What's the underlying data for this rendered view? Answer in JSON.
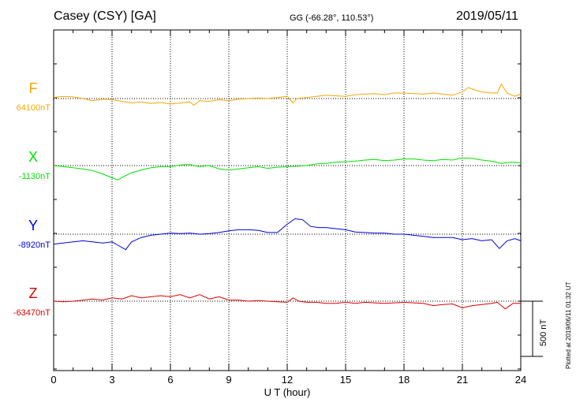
{
  "header": {
    "station": "Casey (CSY)  [GA]",
    "coords": "GG (-66.28°, 110.53°)",
    "date": "2019/05/11"
  },
  "side": {
    "scale_label": "500 nT",
    "plotted": "Plotted at 2019/06/11 01:32 UT"
  },
  "chart_data": {
    "type": "line",
    "xlabel": "U T (hour)",
    "xlim": [
      0,
      24
    ],
    "xticks": [
      "0",
      "3",
      "6",
      "9",
      "12",
      "15",
      "18",
      "21",
      "24"
    ],
    "scale_bar_nT": 500,
    "series": [
      {
        "name": "F",
        "baseline_label": "64100nT",
        "color": "#f4a800",
        "baseline_value": 64100,
        "x": [
          0,
          0.5,
          1,
          1.5,
          2,
          2.5,
          3,
          3.5,
          4,
          4.5,
          5,
          5.5,
          6,
          6.5,
          7,
          7.2,
          7.5,
          8,
          8.5,
          9,
          9.5,
          10,
          10.5,
          11,
          11.5,
          12,
          12.3,
          12.5,
          13,
          13.5,
          14,
          14.5,
          15,
          15.5,
          16,
          16.5,
          17,
          17.5,
          18,
          18.5,
          19,
          19.5,
          20,
          20.5,
          21,
          21.3,
          21.7,
          22,
          22.5,
          22.8,
          23,
          23.3,
          23.7,
          24
        ],
        "y": [
          64110,
          64120,
          64115,
          64100,
          64080,
          64095,
          64090,
          64075,
          64060,
          64070,
          64055,
          64065,
          64050,
          64060,
          64070,
          64040,
          64080,
          64075,
          64090,
          64080,
          64095,
          64100,
          64105,
          64100,
          64110,
          64120,
          64060,
          64100,
          64110,
          64120,
          64130,
          64125,
          64120,
          64135,
          64140,
          64145,
          64135,
          64150,
          64150,
          64145,
          64140,
          64150,
          64140,
          64130,
          64160,
          64200,
          64175,
          64160,
          64150,
          64150,
          64230,
          64150,
          64120,
          64140
        ]
      },
      {
        "name": "X",
        "baseline_label": "-1130nT",
        "color": "#00e000",
        "baseline_value": -1130,
        "x": [
          0,
          0.5,
          1,
          1.5,
          2,
          2.5,
          3,
          3.3,
          3.6,
          4,
          4.5,
          5,
          5.5,
          6,
          6.5,
          7,
          7.5,
          8,
          8.5,
          9,
          9.5,
          10,
          10.5,
          11,
          11.5,
          12,
          12.5,
          13,
          13.5,
          14,
          14.5,
          15,
          15.5,
          16,
          16.5,
          17,
          17.5,
          18,
          18.5,
          19,
          19.5,
          20,
          20.5,
          21,
          21.5,
          22,
          22.5,
          23,
          23.5,
          24
        ],
        "y": [
          -1130,
          -1140,
          -1150,
          -1160,
          -1175,
          -1205,
          -1240,
          -1260,
          -1230,
          -1195,
          -1170,
          -1150,
          -1140,
          -1140,
          -1125,
          -1120,
          -1140,
          -1130,
          -1160,
          -1170,
          -1160,
          -1150,
          -1140,
          -1155,
          -1145,
          -1140,
          -1135,
          -1130,
          -1115,
          -1110,
          -1100,
          -1095,
          -1090,
          -1080,
          -1075,
          -1085,
          -1080,
          -1070,
          -1070,
          -1080,
          -1085,
          -1075,
          -1080,
          -1060,
          -1065,
          -1080,
          -1090,
          -1110,
          -1100,
          -1105
        ]
      },
      {
        "name": "Y",
        "baseline_label": "-8920nT",
        "color": "#0000dd",
        "baseline_value": -8920,
        "x": [
          0,
          0.5,
          1,
          1.5,
          2,
          2.5,
          3,
          3.3,
          3.7,
          4,
          4.5,
          5,
          5.5,
          6,
          6.5,
          7,
          7.5,
          8,
          8.5,
          9,
          9.5,
          10,
          10.5,
          11,
          11.5,
          12,
          12.4,
          12.8,
          13.2,
          13.6,
          14,
          14.5,
          15,
          15.5,
          16,
          16.5,
          17,
          17.5,
          18,
          18.5,
          19,
          19.5,
          20,
          20.5,
          21,
          21.5,
          22,
          22.5,
          22.9,
          23.3,
          23.7,
          24
        ],
        "y": [
          -9010,
          -9000,
          -8990,
          -8980,
          -8990,
          -9000,
          -8990,
          -9020,
          -9060,
          -8990,
          -8950,
          -8930,
          -8920,
          -8910,
          -8915,
          -8910,
          -8920,
          -8915,
          -8905,
          -8890,
          -8880,
          -8880,
          -8885,
          -8905,
          -8905,
          -8830,
          -8780,
          -8790,
          -8850,
          -8860,
          -8860,
          -8870,
          -8880,
          -8900,
          -8905,
          -8910,
          -8910,
          -8920,
          -8920,
          -8930,
          -8940,
          -8950,
          -8950,
          -8950,
          -8970,
          -8960,
          -8980,
          -8970,
          -9050,
          -8980,
          -8960,
          -8980
        ]
      },
      {
        "name": "Z",
        "baseline_label": "-63470nT",
        "color": "#dd0000",
        "baseline_value": -63470,
        "x": [
          0,
          0.5,
          1,
          1.5,
          2,
          2.5,
          3,
          3.5,
          4,
          4.5,
          5,
          5.5,
          6,
          6.5,
          7,
          7.5,
          8,
          8.5,
          9,
          9.5,
          10,
          10.5,
          11,
          11.5,
          12,
          12.3,
          12.6,
          13,
          13.5,
          14,
          14.5,
          15,
          15.5,
          16,
          16.5,
          17,
          17.5,
          18,
          18.5,
          19,
          19.5,
          20,
          20.5,
          21,
          21.5,
          22,
          22.5,
          22.8,
          23.2,
          23.6,
          24
        ],
        "y": [
          -63470,
          -63475,
          -63470,
          -63460,
          -63450,
          -63460,
          -63440,
          -63450,
          -63420,
          -63440,
          -63430,
          -63420,
          -63430,
          -63410,
          -63440,
          -63410,
          -63450,
          -63430,
          -63460,
          -63460,
          -63470,
          -63465,
          -63470,
          -63475,
          -63480,
          -63440,
          -63470,
          -63480,
          -63480,
          -63490,
          -63490,
          -63480,
          -63490,
          -63480,
          -63485,
          -63490,
          -63485,
          -63480,
          -63485,
          -63490,
          -63510,
          -63500,
          -63495,
          -63530,
          -63510,
          -63500,
          -63490,
          -63480,
          -63540,
          -63490,
          -63490
        ]
      }
    ]
  }
}
